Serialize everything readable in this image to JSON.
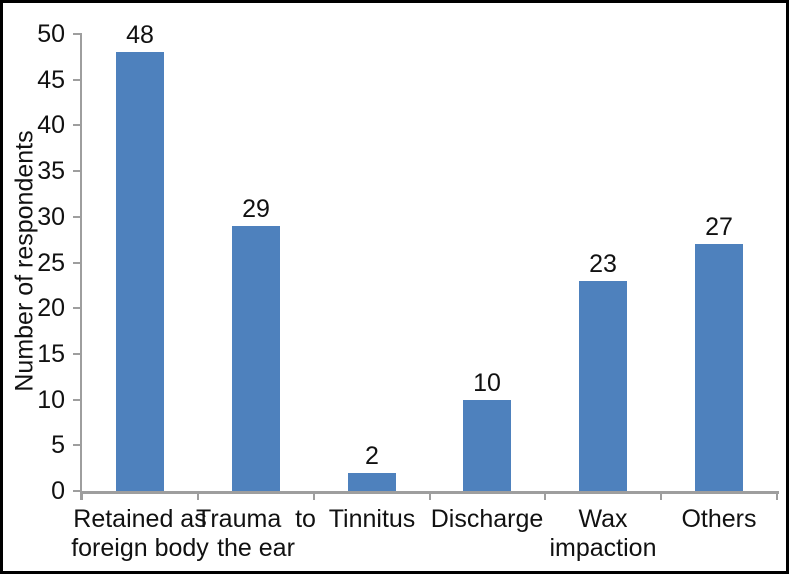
{
  "figure": {
    "background": "#FFFFFF",
    "border_color": "#000000"
  },
  "chart_data": {
    "type": "bar",
    "title": "",
    "xlabel": "",
    "ylabel": "Number of respondents",
    "categories": [
      "Retained as\nforeign body",
      "Trauma  to\nthe ear",
      "Tinnitus",
      "Discharge",
      "Wax\nimpaction",
      "Others"
    ],
    "values": [
      48,
      29,
      2,
      10,
      23,
      27
    ],
    "ylim": [
      0,
      50
    ],
    "yticks": [
      0,
      5,
      10,
      15,
      20,
      25,
      30,
      35,
      40,
      45,
      50
    ],
    "ytick_step": 5,
    "grid": false,
    "legend_position": "none",
    "show_data_labels": true,
    "colors": {
      "bar": "#4E81BD",
      "axis": "#9E9E9E",
      "text": "#111111"
    }
  }
}
